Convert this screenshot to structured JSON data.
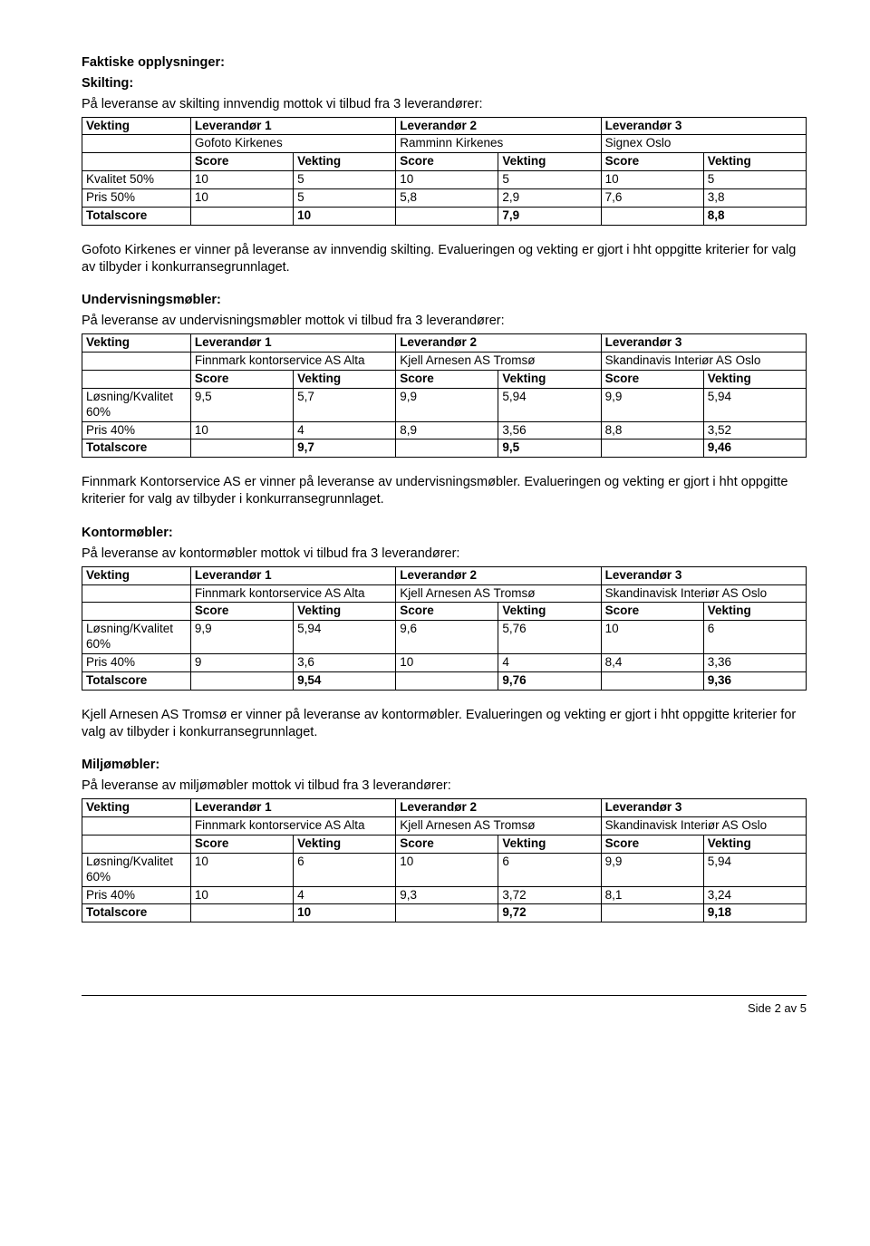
{
  "headings": {
    "faktiske": "Faktiske opplysninger:",
    "skilting": "Skilting:",
    "undervisning": "Undervisningsmøbler:",
    "kontor": "Kontormøbler:",
    "miljo": "Miljømøbler:"
  },
  "intro": {
    "skilting": "På leveranse av skilting innvendig mottok vi tilbud fra 3 leverandører:",
    "undervisning": "På leveranse av undervisningsmøbler mottok vi tilbud fra 3 leverandører:",
    "kontor": "På leveranse av kontormøbler mottok vi tilbud fra 3 leverandører:",
    "miljo": "På leveranse av miljømøbler mottok vi tilbud fra 3 leverandører:"
  },
  "labels": {
    "vekting": "Vekting",
    "lev1": "Leverandør 1",
    "lev2": "Leverandør 2",
    "lev3": "Leverandør 3",
    "score": "Score",
    "kvalitet50": "Kvalitet 50%",
    "pris50": "Pris 50%",
    "losning60": "Løsning/Kvalitet 60%",
    "pris40": "Pris 40%",
    "totalscore": "Totalscore"
  },
  "skilting": {
    "sup1": "Gofoto Kirkenes",
    "sup2": "Ramminn Kirkenes",
    "sup3": "Signex Oslo",
    "row1": [
      "10",
      "5",
      "10",
      "5",
      "10",
      "5"
    ],
    "row2": [
      "10",
      "5",
      "5,8",
      "2,9",
      "7,6",
      "3,8"
    ],
    "tot": [
      "",
      "10",
      "",
      "7,9",
      "",
      "8,8"
    ]
  },
  "skilting_summary": "Gofoto Kirkenes er vinner på leveranse av innvendig skilting. Evalueringen og vekting er gjort i hht oppgitte kriterier for valg av tilbyder i konkurransegrunnlaget.",
  "undervisning": {
    "sup1": "Finnmark kontorservice AS Alta",
    "sup2": "Kjell Arnesen AS Tromsø",
    "sup3": "Skandinavis Interiør AS Oslo",
    "row1": [
      "9,5",
      "5,7",
      "9,9",
      "5,94",
      "9,9",
      "5,94"
    ],
    "row2": [
      "10",
      "4",
      "8,9",
      "3,56",
      "8,8",
      "3,52"
    ],
    "tot": [
      "",
      "9,7",
      "",
      "9,5",
      "",
      "9,46"
    ]
  },
  "undervisning_summary": "Finnmark Kontorservice AS er vinner på leveranse av undervisningsmøbler. Evalueringen og vekting er gjort i hht oppgitte kriterier for valg av tilbyder i konkurransegrunnlaget.",
  "kontor": {
    "sup1": "Finnmark kontorservice AS Alta",
    "sup2": "Kjell Arnesen AS Tromsø",
    "sup3": "Skandinavisk Interiør AS Oslo",
    "row1": [
      "9,9",
      "5,94",
      "9,6",
      "5,76",
      "10",
      "6"
    ],
    "row2": [
      "9",
      "3,6",
      "10",
      "4",
      "8,4",
      "3,36"
    ],
    "tot": [
      "",
      "9,54",
      "",
      "9,76",
      "",
      "9,36"
    ]
  },
  "kontor_summary": "Kjell Arnesen AS Tromsø er vinner på leveranse av kontormøbler. Evalueringen og vekting er gjort i hht oppgitte kriterier for valg av tilbyder i konkurransegrunnlaget.",
  "miljo": {
    "sup1": "Finnmark kontorservice AS Alta",
    "sup2": "Kjell Arnesen AS Tromsø",
    "sup3": "Skandinavisk Interiør AS Oslo",
    "row1": [
      "10",
      "6",
      "10",
      "6",
      "9,9",
      "5,94"
    ],
    "row2": [
      "10",
      "4",
      "9,3",
      "3,72",
      "8,1",
      "3,24"
    ],
    "tot": [
      "",
      "10",
      "",
      "9,72",
      "",
      "9,18"
    ]
  },
  "footer": "Side 2 av 5"
}
